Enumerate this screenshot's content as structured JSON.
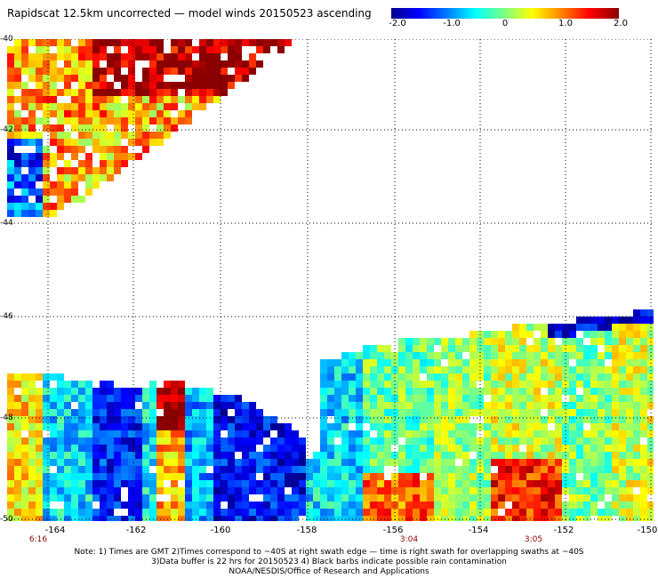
{
  "header": {
    "title": "Rapidscat 12.5km uncorrected — model winds 20150523 ascending"
  },
  "colorbar": {
    "labels": [
      "-2.0",
      "-1.0",
      "0",
      "1.0",
      "2.0"
    ],
    "min": -2.0,
    "max": 2.0
  },
  "map": {
    "lat_labels": [
      "-40",
      "-42",
      "-44",
      "-46",
      "-48",
      "-50"
    ],
    "lon_labels": [
      "-164",
      "-162",
      "-160",
      "-158",
      "-156",
      "-154",
      "-152",
      "-150"
    ],
    "lat_range": [
      -50,
      -40
    ],
    "lon_range": [
      -165.5,
      -150
    ],
    "time_labels": [
      {
        "text": "6:16",
        "lon": -165.2
      },
      {
        "text": "3:04",
        "lon": -155.8
      },
      {
        "text": "3:05",
        "lon": -152.6
      }
    ],
    "grid": true
  },
  "notes": [
    "Note: 1) Times are GMT 2)Times correspond to ~40S at right swath edge — time is right swath for overlapping swaths at ~40S",
    "3)Data buffer is 22 hrs for 20150523 4) Black barbs indicate possible rain contamination",
    "NOAA/NESDIS/Office of Research and Applications"
  ]
}
